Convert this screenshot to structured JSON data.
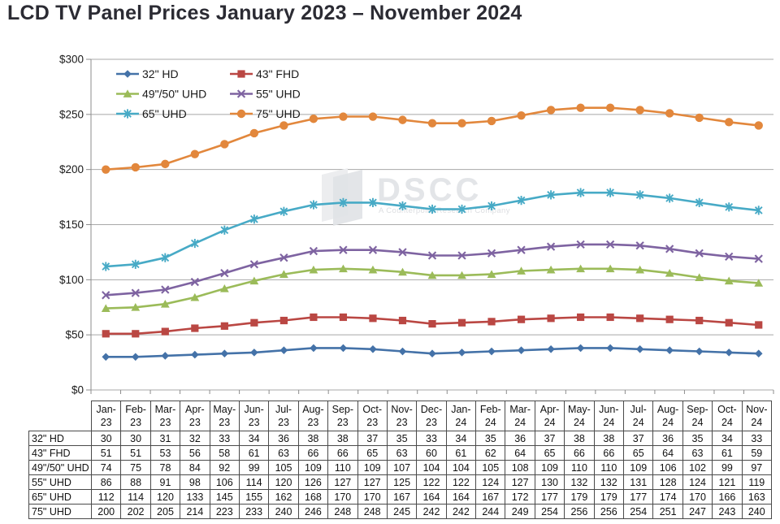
{
  "page": {
    "title": "LCD TV Panel Prices January 2023 – November 2024"
  },
  "watermark": {
    "brand": "DSCC",
    "tagline": "A Counterpoint Research Company"
  },
  "colors": {
    "gridline": "#a8a8a8",
    "axis": "#8c8c8c",
    "table_border": "#4a4a4a",
    "title_text": "#2b2b33"
  },
  "chart_data": {
    "type": "line",
    "title": "LCD TV Panel Prices January 2023 – November 2024",
    "xlabel": "",
    "ylabel": "",
    "ylim": [
      0,
      300
    ],
    "grid": true,
    "legend_position": "top-left-two-columns",
    "yticks": [
      {
        "value": 0,
        "label": "$0"
      },
      {
        "value": 50,
        "label": "$50"
      },
      {
        "value": 100,
        "label": "$100"
      },
      {
        "value": 150,
        "label": "$150"
      },
      {
        "value": 200,
        "label": "$200"
      },
      {
        "value": 250,
        "label": "$250"
      },
      {
        "value": 300,
        "label": "$300"
      }
    ],
    "categories": [
      "Jan-23",
      "Feb-23",
      "Mar-23",
      "Apr-23",
      "May-23",
      "Jun-23",
      "Jul-23",
      "Aug-23",
      "Sep-23",
      "Oct-23",
      "Nov-23",
      "Dec-23",
      "Jan-24",
      "Feb-24",
      "Mar-24",
      "Apr-24",
      "May-24",
      "Jun-24",
      "Jul-24",
      "Aug-24",
      "Sep-24",
      "Oct-24",
      "Nov-24"
    ],
    "series": [
      {
        "name": "32\" HD",
        "marker": "diamond",
        "color": "#4472A8",
        "values": [
          30,
          30,
          31,
          32,
          33,
          34,
          36,
          38,
          38,
          37,
          35,
          33,
          34,
          35,
          36,
          37,
          38,
          38,
          37,
          36,
          35,
          34,
          33
        ]
      },
      {
        "name": "43\" FHD",
        "marker": "square",
        "color": "#BA4743",
        "values": [
          51,
          51,
          53,
          56,
          58,
          61,
          63,
          66,
          66,
          65,
          63,
          60,
          61,
          62,
          64,
          65,
          66,
          66,
          65,
          64,
          63,
          61,
          59
        ]
      },
      {
        "name": "49\"/50\" UHD",
        "marker": "triangle",
        "color": "#9BBB59",
        "values": [
          74,
          75,
          78,
          84,
          92,
          99,
          105,
          109,
          110,
          109,
          107,
          104,
          104,
          105,
          108,
          109,
          110,
          110,
          109,
          106,
          102,
          99,
          97
        ]
      },
      {
        "name": "55\" UHD",
        "marker": "x",
        "color": "#7E63A1",
        "values": [
          86,
          88,
          91,
          98,
          106,
          114,
          120,
          126,
          127,
          127,
          125,
          122,
          122,
          124,
          127,
          130,
          132,
          132,
          131,
          128,
          124,
          121,
          119
        ]
      },
      {
        "name": "65\" UHD",
        "marker": "asterisk",
        "color": "#47AAC6",
        "values": [
          112,
          114,
          120,
          133,
          145,
          155,
          162,
          168,
          170,
          170,
          167,
          164,
          164,
          167,
          172,
          177,
          179,
          179,
          177,
          174,
          170,
          166,
          163
        ]
      },
      {
        "name": "75\" UHD",
        "marker": "circle",
        "color": "#E2873C",
        "values": [
          200,
          202,
          205,
          214,
          223,
          233,
          240,
          246,
          248,
          248,
          245,
          242,
          242,
          244,
          249,
          254,
          256,
          256,
          254,
          251,
          247,
          243,
          240
        ]
      }
    ]
  }
}
